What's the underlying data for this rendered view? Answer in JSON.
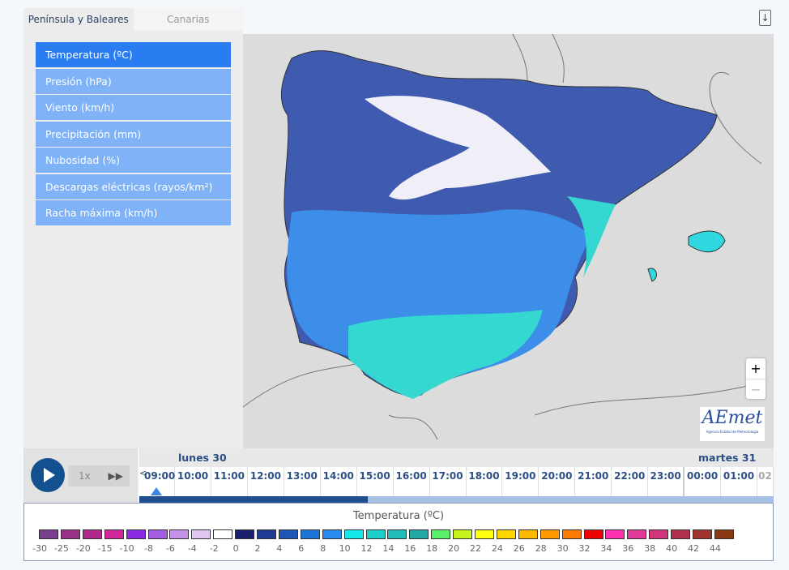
{
  "tabs": [
    {
      "label": "Península y Baleares",
      "active": true
    },
    {
      "label": "Canarias",
      "active": false
    }
  ],
  "menu": [
    "Temperatura (ºC)",
    "Presión (hPa)",
    "Viento (km/h)",
    "Precipitación (mm)",
    "Nubosidad (%)",
    "Descargas eléctricas (rayos/km²)",
    "Racha máxima (km/h)"
  ],
  "download_icon": "download-icon",
  "zoom": {
    "in": "+",
    "out": "−"
  },
  "logo": {
    "text": "AEmet",
    "subtitle": "Agencia Estatal de Meteorología"
  },
  "player": {
    "speed": "1x",
    "ff": "▶▶"
  },
  "timeline": {
    "days": [
      "lunes 30",
      "martes 31"
    ],
    "prev": "<",
    "next": ">",
    "hours": [
      "09:00",
      "10:00",
      "11:00",
      "12:00",
      "13:00",
      "14:00",
      "15:00",
      "16:00",
      "17:00",
      "18:00",
      "19:00",
      "20:00",
      "21:00",
      "22:00",
      "23:00",
      "00:00",
      "01:00",
      "02"
    ],
    "progress_percent": 36
  },
  "legend": {
    "title": "Temperatura (ºC)",
    "labels": [
      "-30",
      "-25",
      "-20",
      "-15",
      "-10",
      "-8",
      "-6",
      "-4",
      "-2",
      "0",
      "2",
      "4",
      "6",
      "8",
      "10",
      "12",
      "14",
      "16",
      "18",
      "20",
      "22",
      "24",
      "26",
      "28",
      "30",
      "32",
      "34",
      "36",
      "38",
      "40",
      "42",
      "44"
    ],
    "colors": [
      "#7b3f8f",
      "#9a2f8a",
      "#b02a8c",
      "#d0289a",
      "#8a2be2",
      "#a45ee0",
      "#c490e8",
      "#e0c8f2",
      "#ffffff",
      "#1a1f6e",
      "#1f3a93",
      "#1f57b5",
      "#1e75d8",
      "#2b8cf0",
      "#14e8e8",
      "#1ccfc8",
      "#1fbdb8",
      "#23a8a5",
      "#5cf06a",
      "#c8f21c",
      "#ffff10",
      "#ffd800",
      "#ffb800",
      "#ff9a00",
      "#ff7a00",
      "#f00000",
      "#ff30b0",
      "#e03a9a",
      "#d0347a",
      "#b03050",
      "#a03530",
      "#8a3a12"
    ]
  }
}
